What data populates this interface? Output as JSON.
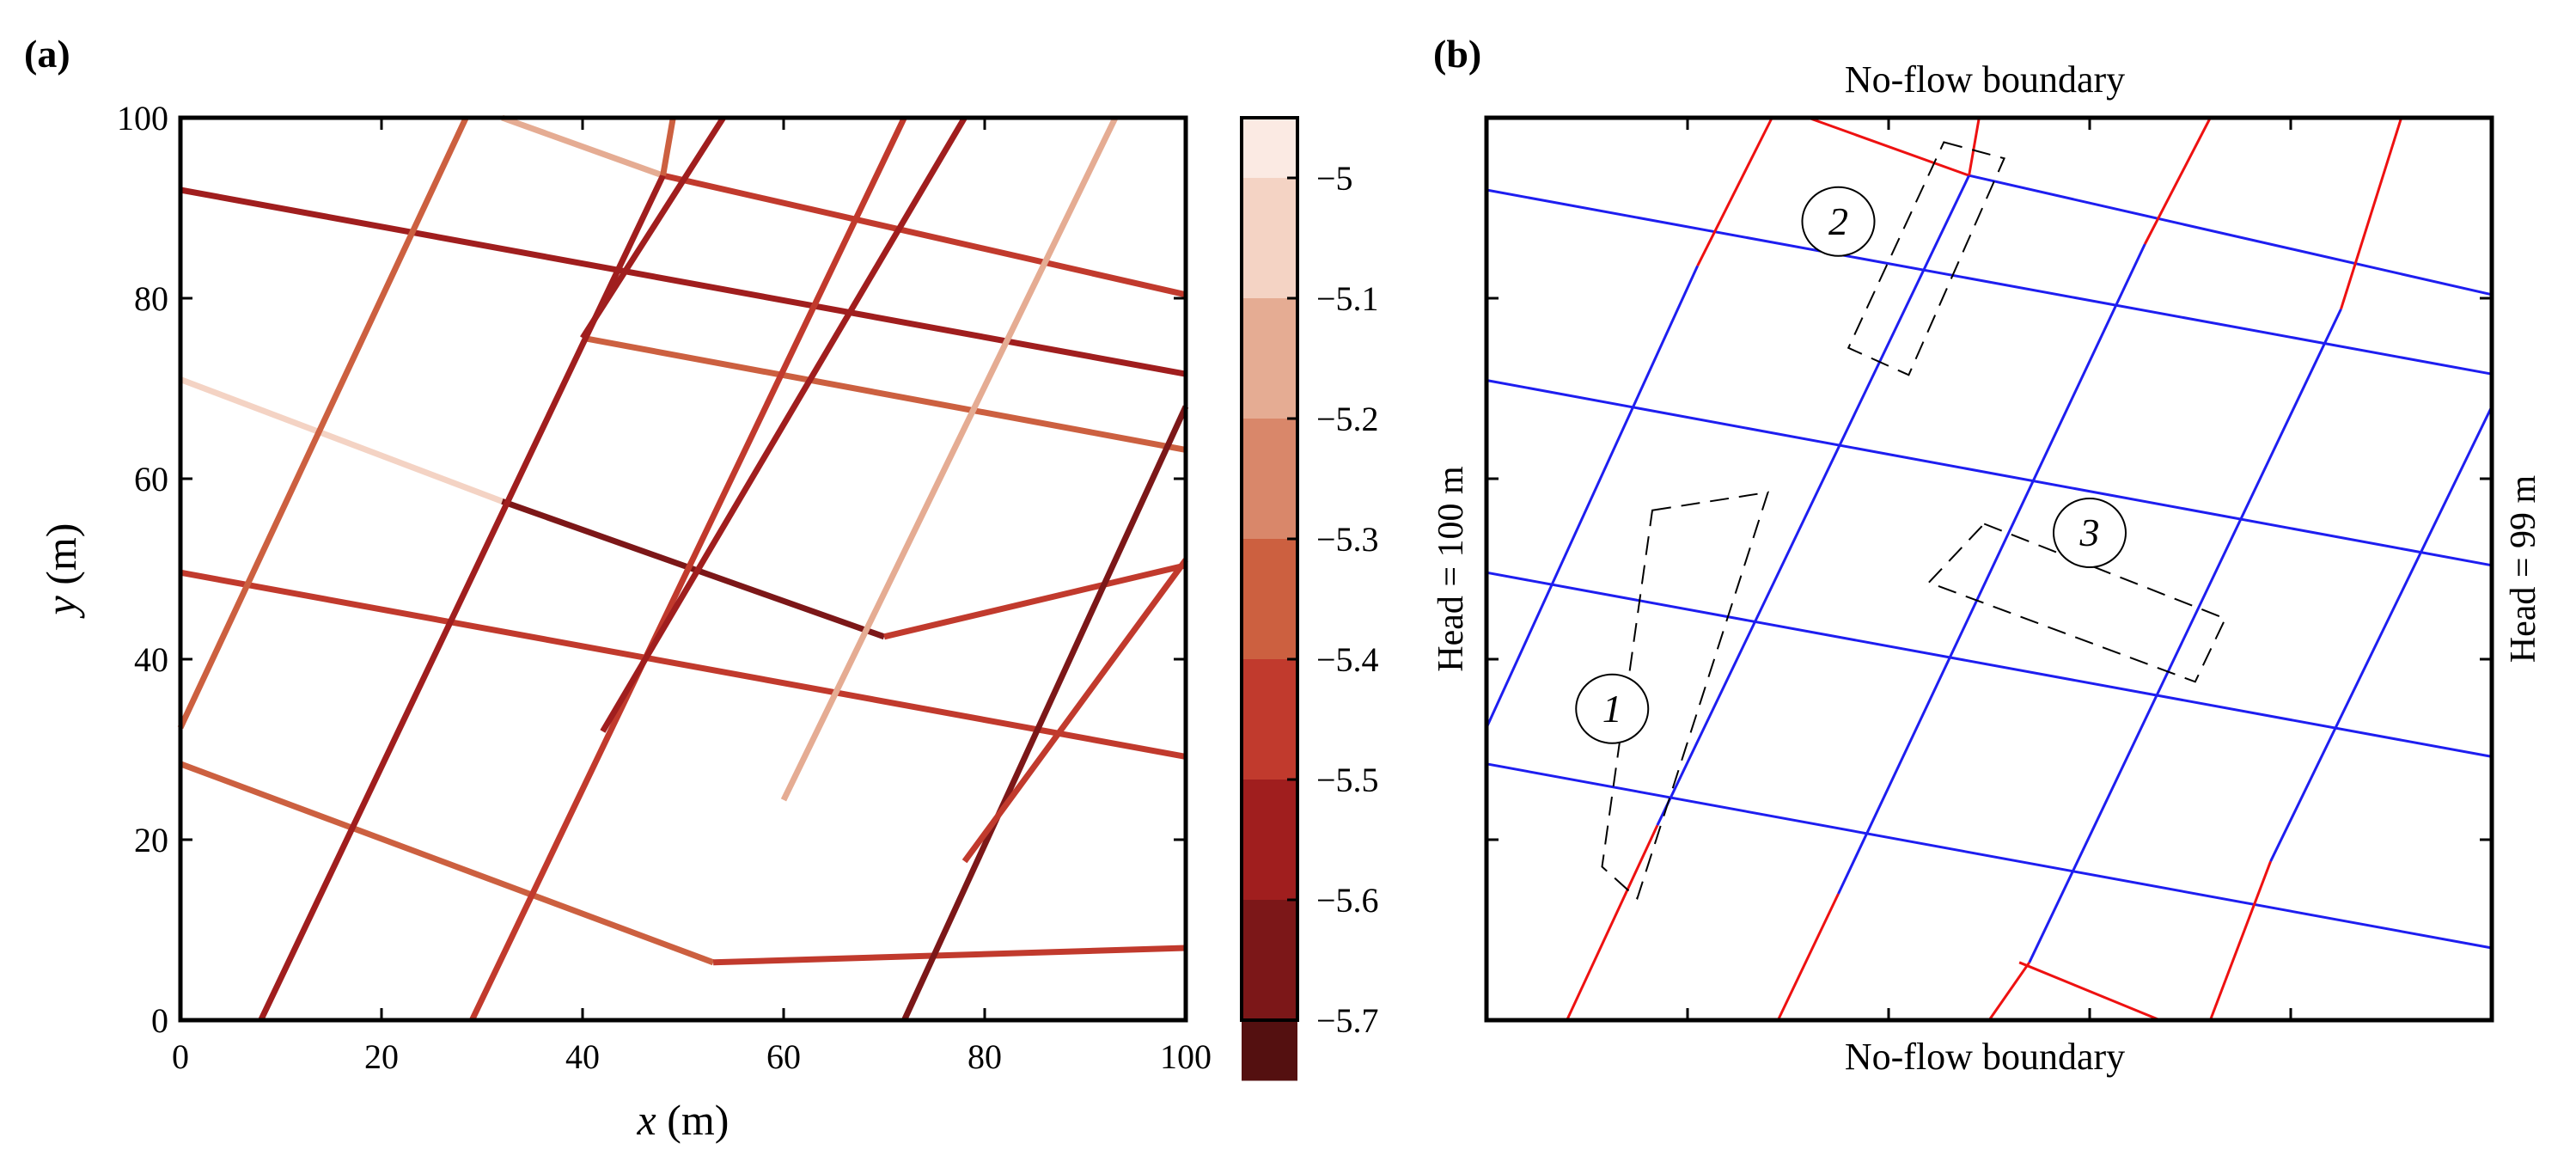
{
  "chart_data": [
    {
      "panel_label": "(a)",
      "type": "line",
      "xlabel": "x (m)",
      "ylabel": "y (m)",
      "xlim": [
        0,
        100
      ],
      "ylim": [
        0,
        100
      ],
      "xticks": [
        0,
        20,
        40,
        60,
        80,
        100
      ],
      "yticks": [
        0,
        20,
        40,
        60,
        80,
        100
      ],
      "colorbar": {
        "ticks": [
          -5,
          -5.1,
          -5.2,
          -5.3,
          -5.4,
          -5.5,
          -5.6,
          -5.7
        ],
        "tick_labels": [
          "−5",
          "−5.1",
          "−5.2",
          "−5.3",
          "−5.4",
          "−5.5",
          "−5.6",
          "−5.7"
        ],
        "range": [
          -5.7,
          -4.95
        ],
        "levels": [
          {
            "from": -4.95,
            "to": -5.0,
            "color": "#fbeae3"
          },
          {
            "from": -5.0,
            "to": -5.1,
            "color": "#f4d3c4"
          },
          {
            "from": -5.1,
            "to": -5.2,
            "color": "#e5ac93"
          },
          {
            "from": -5.2,
            "to": -5.3,
            "color": "#d9876a"
          },
          {
            "from": -5.3,
            "to": -5.4,
            "color": "#cc6040"
          },
          {
            "from": -5.4,
            "to": -5.5,
            "color": "#c13a2d"
          },
          {
            "from": -5.5,
            "to": -5.6,
            "color": "#a01e1e"
          },
          {
            "from": -5.6,
            "to": -5.7,
            "color": "#7c1718"
          },
          {
            "from": -5.7,
            "to": -5.75,
            "color": "#541010"
          }
        ]
      },
      "fractures": [
        {
          "points": [
            [
              0,
              92
            ],
            [
              100,
              71.6
            ]
          ],
          "value": -5.55
        },
        {
          "points": [
            [
              32,
              100
            ],
            [
              48,
              93.6
            ]
          ],
          "value": -5.15
        },
        {
          "points": [
            [
              48,
              93.6
            ],
            [
              100,
              80.4
            ]
          ],
          "value": -5.5
        },
        {
          "points": [
            [
              0,
              71
            ],
            [
              32,
              57.5
            ]
          ],
          "value": -5.05
        },
        {
          "points": [
            [
              32,
              57.5
            ],
            [
              70,
              42.5
            ]
          ],
          "value": -5.62
        },
        {
          "points": [
            [
              70,
              42.5
            ],
            [
              100,
              50.4
            ]
          ],
          "value": -5.5
        },
        {
          "points": [
            [
              0,
              49.6
            ],
            [
              100,
              29.2
            ]
          ],
          "value": -5.45
        },
        {
          "points": [
            [
              0,
              28.4
            ],
            [
              53,
              6.4
            ]
          ],
          "value": -5.4
        },
        {
          "points": [
            [
              53,
              6.4
            ],
            [
              100,
              8
            ]
          ],
          "value": -5.5
        },
        {
          "points": [
            [
              40,
              75.6
            ],
            [
              100,
              63.2
            ]
          ],
          "value": -5.35
        },
        {
          "points": [
            [
              0,
              32.4
            ],
            [
              28.4,
              100
            ]
          ],
          "value": -5.35
        },
        {
          "points": [
            [
              8,
              0
            ],
            [
              48,
              93.6
            ]
          ],
          "value": -5.55
        },
        {
          "points": [
            [
              48,
              93.6
            ],
            [
              49,
              100
            ]
          ],
          "value": -5.35
        },
        {
          "points": [
            [
              29,
              0
            ],
            [
              72,
              100
            ]
          ],
          "value": -5.45
        },
        {
          "points": [
            [
              40,
              75.6
            ],
            [
              54,
              100
            ]
          ],
          "value": -5.6
        },
        {
          "points": [
            [
              42,
              32
            ],
            [
              78,
              100
            ]
          ],
          "value": -5.55
        },
        {
          "points": [
            [
              60,
              24.4
            ],
            [
              93,
              100
            ]
          ],
          "value": -5.2
        },
        {
          "points": [
            [
              72,
              0
            ],
            [
              100,
              68
            ]
          ],
          "value": -5.68
        },
        {
          "points": [
            [
              78,
              17.6
            ],
            [
              100,
              51
            ]
          ],
          "value": -5.5
        }
      ]
    },
    {
      "panel_label": "(b)",
      "type": "line",
      "xlim": [
        0,
        100
      ],
      "ylim": [
        0,
        100
      ],
      "top_label": "No-flow boundary",
      "bottom_label": "No-flow boundary",
      "left_label": "Head = 100 m",
      "right_label": "Head = 99 m",
      "blue_color": "#1e1ef0",
      "red_color": "#ee1111",
      "lines": [
        {
          "points": [
            [
              0,
              92
            ],
            [
              100,
              71.6
            ]
          ],
          "color": "blue"
        },
        {
          "points": [
            [
              0,
              70.9
            ],
            [
              100,
              50.4
            ]
          ],
          "color": "blue"
        },
        {
          "points": [
            [
              0,
              49.6
            ],
            [
              100,
              29.2
            ]
          ],
          "color": "blue"
        },
        {
          "points": [
            [
              0,
              28.4
            ],
            [
              100,
              8
            ]
          ],
          "color": "blue"
        },
        {
          "points": [
            [
              32,
              100
            ],
            [
              48,
              93.6
            ]
          ],
          "color": "red"
        },
        {
          "points": [
            [
              48,
              93.6
            ],
            [
              100,
              80.4
            ]
          ],
          "color": "blue"
        },
        {
          "points": [
            [
              53,
              6.4
            ],
            [
              67,
              0
            ]
          ],
          "color": "red"
        },
        {
          "points": [
            [
              0,
              32.4
            ],
            [
              21,
              83.6
            ]
          ],
          "color": "blue"
        },
        {
          "points": [
            [
              21,
              83.6
            ],
            [
              28.4,
              100
            ]
          ],
          "color": "red"
        },
        {
          "points": [
            [
              8,
              0
            ],
            [
              17,
              21.6
            ]
          ],
          "color": "red"
        },
        {
          "points": [
            [
              17,
              21.6
            ],
            [
              48,
              93.6
            ]
          ],
          "color": "blue"
        },
        {
          "points": [
            [
              48,
              93.6
            ],
            [
              49,
              100
            ]
          ],
          "color": "red"
        },
        {
          "points": [
            [
              29,
              0
            ],
            [
              35,
              14
            ]
          ],
          "color": "red"
        },
        {
          "points": [
            [
              35,
              14
            ],
            [
              65.5,
              86
            ]
          ],
          "color": "blue"
        },
        {
          "points": [
            [
              65.5,
              86
            ],
            [
              72,
              100
            ]
          ],
          "color": "red"
        },
        {
          "points": [
            [
              50,
              0
            ],
            [
              54,
              6.4
            ]
          ],
          "color": "red"
        },
        {
          "points": [
            [
              54,
              6.4
            ],
            [
              85,
              78.8
            ]
          ],
          "color": "blue"
        },
        {
          "points": [
            [
              85,
              78.8
            ],
            [
              91,
              100
            ]
          ],
          "color": "red"
        },
        {
          "points": [
            [
              72,
              0
            ],
            [
              78,
              17.6
            ]
          ],
          "color": "red"
        },
        {
          "points": [
            [
              78,
              17.6
            ],
            [
              100,
              68
            ]
          ],
          "color": "blue"
        }
      ],
      "dashed_boxes": [
        {
          "label": "1",
          "corners": [
            [
              16.5,
              56.5
            ],
            [
              28,
              58.5
            ],
            [
              15,
              13.5
            ],
            [
              11.5,
              17
            ]
          ],
          "circle": [
            12.5,
            34.5
          ]
        },
        {
          "label": "2",
          "corners": [
            [
              45.5,
              97.3
            ],
            [
              51.5,
              95.5
            ],
            [
              42,
              71.5
            ],
            [
              36,
              74.5
            ]
          ],
          "circle": [
            35,
            88.5
          ]
        },
        {
          "label": "3",
          "corners": [
            [
              49.5,
              55
            ],
            [
              73.5,
              44.5
            ],
            [
              70.5,
              37.5
            ],
            [
              44,
              48.5
            ]
          ],
          "circle": [
            60,
            54
          ]
        }
      ]
    }
  ]
}
